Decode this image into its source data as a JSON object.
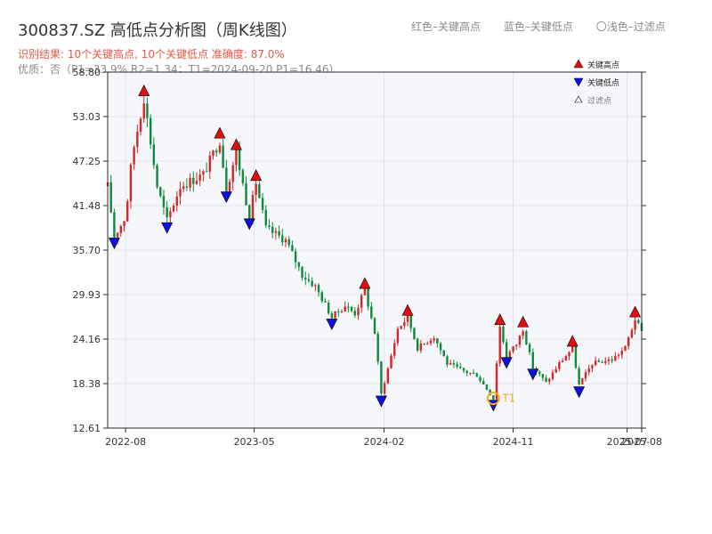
{
  "header": {
    "title": "300837.SZ 高低点分析图（周K线图）",
    "result_line": "识别结果: 10个关键高点, 10个关键低点  准确度: 87.0%",
    "quality_line": "优质：否（P1=33.9%  R2=1.34；T1=2024-09-20 P1=16.46）"
  },
  "top_legend": {
    "red": "红色–关键高点",
    "blue": "蓝色–关键低点",
    "light": "〇浅色–过滤点"
  },
  "colors": {
    "up": "#d62728",
    "down": "#0d8a3a",
    "high_marker": "#e01010",
    "low_marker": "#1010d8",
    "t1_marker": "#f5a623",
    "plot_bg": "#f6f7fa",
    "grid": "#e2e4ea"
  },
  "chart_data": {
    "type": "candlestick",
    "ylim": [
      12.61,
      58.8
    ],
    "ytick_labels": [
      "12.61",
      "18.38",
      "24.16",
      "29.93",
      "35.70",
      "41.48",
      "47.25",
      "53.03",
      "58.80"
    ],
    "yticks": [
      12.61,
      18.38,
      24.16,
      29.93,
      35.7,
      41.48,
      47.25,
      53.03,
      58.8
    ],
    "xlim": [
      "2022-06-24",
      "2025-08-01"
    ],
    "xtick_labels": [
      "2022-08",
      "2023-05",
      "2024-02",
      "2024-11",
      "2025-07",
      "2025-08"
    ],
    "xticks": [
      "2022-08-01",
      "2023-05-01",
      "2024-02-01",
      "2024-11-01",
      "2025-07-01",
      "2025-08-01"
    ],
    "grid": true,
    "legend": {
      "position": "top-right",
      "entries": [
        {
          "label": "关键高点",
          "marker": "high"
        },
        {
          "label": "关键低点",
          "marker": "low"
        },
        {
          "label": "过滤点",
          "marker": "filtered"
        }
      ]
    },
    "trend_path": [
      [
        "2022-06-24",
        44.0
      ],
      [
        "2022-07-08",
        37.5
      ],
      [
        "2022-08-01",
        40.0
      ],
      [
        "2022-08-15",
        48.0
      ],
      [
        "2022-09-09",
        55.5
      ],
      [
        "2022-10-07",
        44.0
      ],
      [
        "2022-10-28",
        39.5
      ],
      [
        "2022-11-25",
        44.0
      ],
      [
        "2023-01-13",
        45.5
      ],
      [
        "2023-02-17",
        50.0
      ],
      [
        "2023-03-03",
        43.5
      ],
      [
        "2023-03-24",
        48.5
      ],
      [
        "2023-04-21",
        40.0
      ],
      [
        "2023-05-05",
        44.5
      ],
      [
        "2023-05-26",
        38.5
      ],
      [
        "2023-07-07",
        37.0
      ],
      [
        "2023-08-11",
        32.5
      ],
      [
        "2023-09-08",
        31.0
      ],
      [
        "2023-10-13",
        27.0
      ],
      [
        "2023-11-10",
        28.5
      ],
      [
        "2023-12-01",
        27.5
      ],
      [
        "2023-12-22",
        30.5
      ],
      [
        "2024-01-12",
        25.0
      ],
      [
        "2024-01-26",
        17.0
      ],
      [
        "2024-02-16",
        22.0
      ],
      [
        "2024-03-01",
        25.5
      ],
      [
        "2024-03-22",
        27.0
      ],
      [
        "2024-04-12",
        23.0
      ],
      [
        "2024-05-17",
        24.5
      ],
      [
        "2024-06-14",
        21.0
      ],
      [
        "2024-07-19",
        20.0
      ],
      [
        "2024-08-16",
        19.5
      ],
      [
        "2024-09-20",
        16.46
      ],
      [
        "2024-10-04",
        25.8
      ],
      [
        "2024-10-18",
        22.0
      ],
      [
        "2024-11-08",
        23.5
      ],
      [
        "2024-11-22",
        25.5
      ],
      [
        "2024-12-13",
        20.5
      ],
      [
        "2025-01-10",
        18.5
      ],
      [
        "2025-02-07",
        21.0
      ],
      [
        "2025-03-07",
        23.0
      ],
      [
        "2025-03-21",
        18.2
      ],
      [
        "2025-04-18",
        21.0
      ],
      [
        "2025-05-30",
        21.5
      ],
      [
        "2025-06-27",
        23.0
      ],
      [
        "2025-07-18",
        26.8
      ],
      [
        "2025-08-01",
        25.0
      ]
    ],
    "key_highs": [
      {
        "date": "2022-09-09",
        "price": 55.5
      },
      {
        "date": "2023-02-17",
        "price": 50.0
      },
      {
        "date": "2023-03-24",
        "price": 48.5
      },
      {
        "date": "2023-05-05",
        "price": 44.5
      },
      {
        "date": "2023-12-22",
        "price": 30.5
      },
      {
        "date": "2024-03-22",
        "price": 27.0
      },
      {
        "date": "2024-10-04",
        "price": 25.8
      },
      {
        "date": "2024-11-22",
        "price": 25.5
      },
      {
        "date": "2025-03-07",
        "price": 23.0
      },
      {
        "date": "2025-07-18",
        "price": 26.8
      }
    ],
    "key_lows": [
      {
        "date": "2022-07-08",
        "price": 37.5
      },
      {
        "date": "2022-10-28",
        "price": 39.5
      },
      {
        "date": "2023-03-03",
        "price": 43.5
      },
      {
        "date": "2023-04-21",
        "price": 40.0
      },
      {
        "date": "2023-10-13",
        "price": 27.0
      },
      {
        "date": "2024-01-26",
        "price": 17.0
      },
      {
        "date": "2024-09-20",
        "price": 16.46
      },
      {
        "date": "2024-10-18",
        "price": 22.0
      },
      {
        "date": "2024-12-13",
        "price": 20.5
      },
      {
        "date": "2025-03-21",
        "price": 18.2
      }
    ],
    "t1": {
      "label": "T1",
      "date": "2024-09-20",
      "price": 16.46
    }
  }
}
